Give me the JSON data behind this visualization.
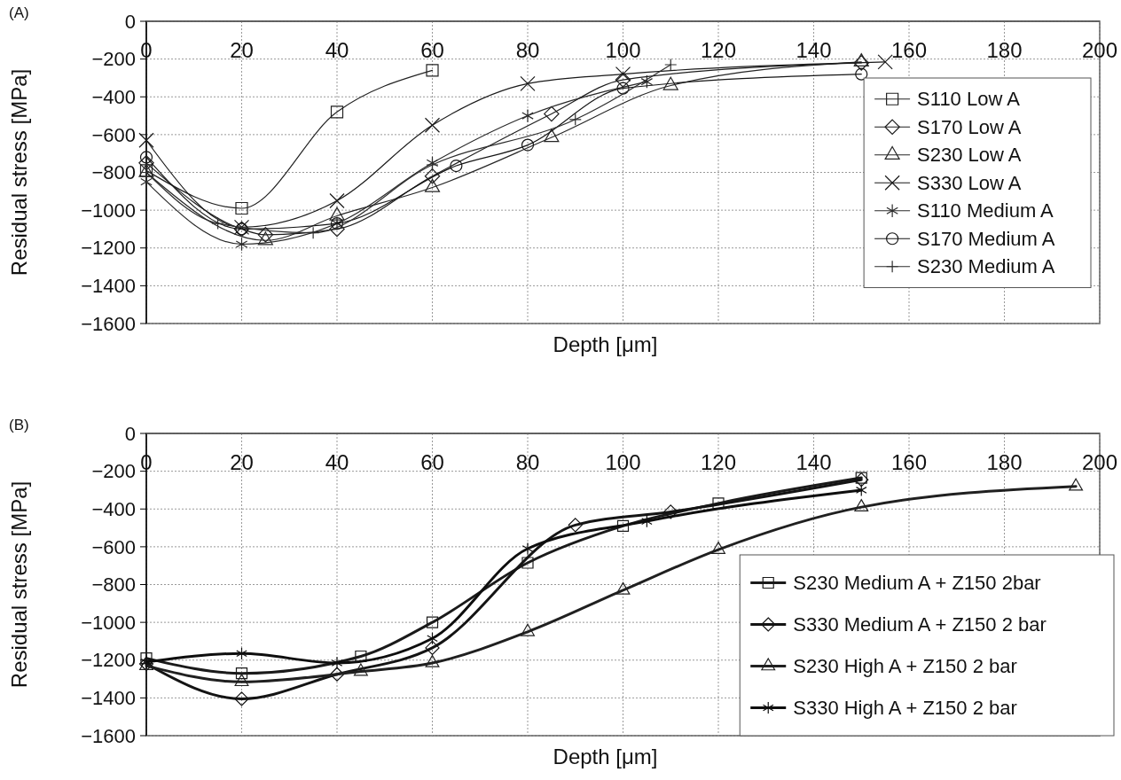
{
  "chart_data": [
    {
      "type": "line",
      "annotations": [
        "(A)"
      ],
      "xlabel": "Depth [μm]",
      "ylabel": "Residual stress [MPa]",
      "xlim": [
        0,
        200
      ],
      "xticks": [
        0,
        20,
        40,
        60,
        80,
        100,
        120,
        140,
        160,
        180,
        200
      ],
      "ylim": [
        -1600,
        0
      ],
      "yticks": [
        -1600,
        -1400,
        -1200,
        -1000,
        -800,
        -600,
        -400,
        -200,
        0
      ],
      "grid": true,
      "legend": "right",
      "line_style": "solid",
      "series": [
        {
          "name": "S110 Low A",
          "color": "#222222",
          "marker": "square",
          "x": [
            0,
            20,
            40,
            60
          ],
          "values": [
            -790,
            -990,
            -480,
            -260
          ]
        },
        {
          "name": "S170 Low A",
          "color": "#1e1e1e",
          "marker": "diamond",
          "x": [
            0,
            20,
            25,
            40,
            60,
            85,
            100,
            150
          ],
          "values": [
            -750,
            -1100,
            -1130,
            -1100,
            -820,
            -490,
            -310,
            -220
          ]
        },
        {
          "name": "S230 Low A",
          "color": "#262626",
          "marker": "triangle",
          "x": [
            0,
            25,
            40,
            60,
            85,
            110,
            150
          ],
          "values": [
            -800,
            -1160,
            -1030,
            -880,
            -615,
            -340,
            -215
          ]
        },
        {
          "name": "S330 Low A",
          "color": "#1a1a1a",
          "marker": "x",
          "x": [
            0,
            20,
            40,
            60,
            80,
            100,
            155
          ],
          "values": [
            -630,
            -1090,
            -950,
            -550,
            -330,
            -280,
            -215
          ]
        },
        {
          "name": "S110 Medium A",
          "color": "#2a2a2a",
          "marker": "cross",
          "x": [
            0,
            20,
            40,
            60,
            80,
            105
          ],
          "values": [
            -850,
            -1180,
            -1070,
            -750,
            -500,
            -320
          ]
        },
        {
          "name": "S170 Medium A",
          "color": "#161616",
          "marker": "circle",
          "x": [
            0,
            20,
            40,
            65,
            80,
            100,
            150
          ],
          "values": [
            -720,
            -1100,
            -1070,
            -765,
            -655,
            -355,
            -280
          ]
        },
        {
          "name": "S230 Medium A",
          "color": "#2e2e2e",
          "marker": "plus",
          "x": [
            0,
            15,
            35,
            60,
            90,
            110
          ],
          "values": [
            -800,
            -1070,
            -1120,
            -760,
            -520,
            -230
          ]
        }
      ]
    },
    {
      "type": "line",
      "annotations": [
        "(B)"
      ],
      "xlabel": "Depth [μm]",
      "ylabel": "Residual stress [MPa]",
      "xlim": [
        0,
        200
      ],
      "xticks": [
        0,
        20,
        40,
        60,
        80,
        100,
        120,
        140,
        160,
        180,
        200
      ],
      "ylim": [
        -1600,
        0
      ],
      "yticks": [
        -1600,
        -1400,
        -1200,
        -1000,
        -800,
        -600,
        -400,
        -200,
        0
      ],
      "grid": true,
      "legend": "bottom right",
      "line_style": "solid",
      "series": [
        {
          "name": "S230 Medium A + Z150 2bar",
          "color": "#1a1a1a",
          "marker": "square",
          "x": [
            0,
            20,
            45,
            60,
            80,
            100,
            120,
            150
          ],
          "values": [
            -1190,
            -1270,
            -1180,
            -1000,
            -685,
            -490,
            -370,
            -235
          ]
        },
        {
          "name": "S330 Medium A + Z150 2 bar",
          "color": "#141414",
          "marker": "diamond",
          "x": [
            0,
            20,
            40,
            60,
            90,
            110,
            150
          ],
          "values": [
            -1220,
            -1405,
            -1275,
            -1135,
            -485,
            -415,
            -245
          ]
        },
        {
          "name": "S230 High A + Z150 2 bar",
          "color": "#202020",
          "marker": "triangle",
          "x": [
            0,
            20,
            45,
            60,
            80,
            100,
            120,
            150,
            195
          ],
          "values": [
            -1230,
            -1315,
            -1260,
            -1215,
            -1050,
            -830,
            -615,
            -390,
            -280
          ]
        },
        {
          "name": "S330 High A + Z150 2 bar",
          "color": "#0e0e0e",
          "marker": "cross",
          "x": [
            0,
            20,
            40,
            60,
            80,
            105,
            150
          ],
          "values": [
            -1210,
            -1165,
            -1215,
            -1085,
            -610,
            -465,
            -300
          ]
        }
      ]
    }
  ]
}
